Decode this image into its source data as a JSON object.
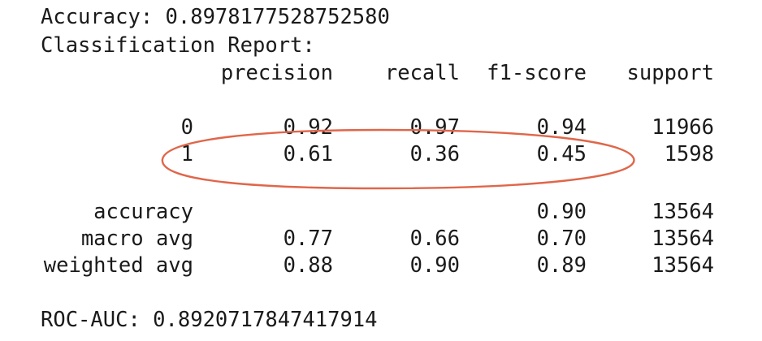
{
  "accuracy_line": "Accuracy: 0.8978177528752580",
  "report_title": "Classification Report:",
  "header": {
    "precision": "precision",
    "recall": "recall",
    "f1": "f1-score",
    "support": "support"
  },
  "rows": [
    {
      "label": "0",
      "precision": "0.92",
      "recall": "0.97",
      "f1": "0.94",
      "support": "11966"
    },
    {
      "label": "1",
      "precision": "0.61",
      "recall": "0.36",
      "f1": "0.45",
      "support": "1598"
    }
  ],
  "summary": [
    {
      "label": "accuracy",
      "precision": "",
      "recall": "",
      "f1": "0.90",
      "support": "13564"
    },
    {
      "label": "macro avg",
      "precision": "0.77",
      "recall": "0.66",
      "f1": "0.70",
      "support": "13564"
    },
    {
      "label": "weighted avg",
      "precision": "0.88",
      "recall": "0.90",
      "f1": "0.89",
      "support": "13564"
    }
  ],
  "roc_line": "ROC-AUC: 0.8920717847417914",
  "colors": {
    "text": "#1a1a1a",
    "highlight": "#e0664a"
  }
}
